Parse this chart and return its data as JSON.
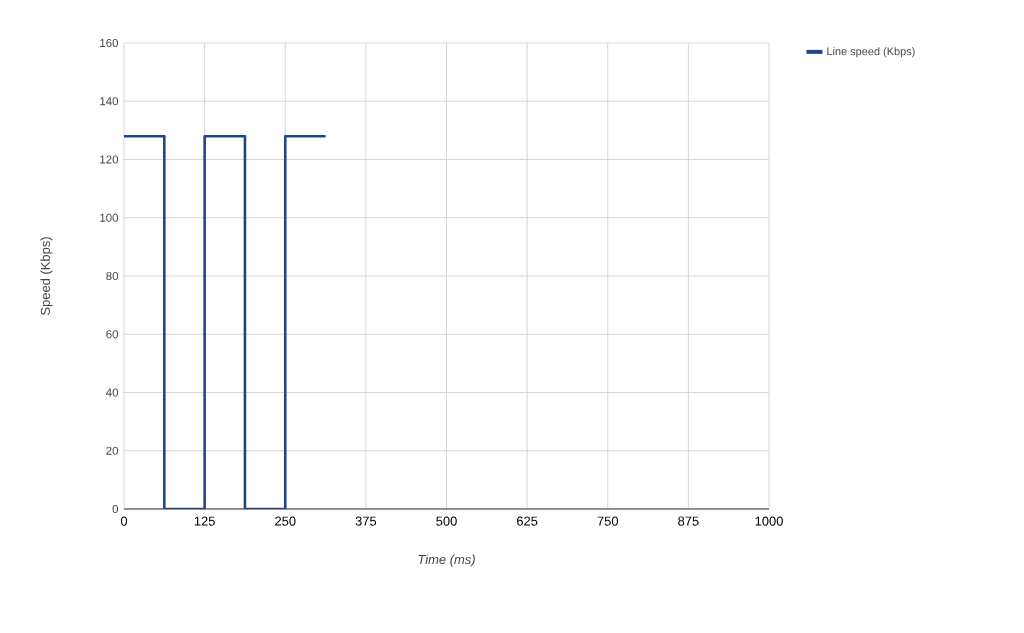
{
  "chart_data": {
    "type": "step",
    "xlabel": "Time (ms)",
    "ylabel": "Speed (Kbps)",
    "x": [
      0,
      62.5,
      125,
      187.5,
      250,
      312.5
    ],
    "series": [
      {
        "name": "Line speed (Kbps)",
        "color": "#1f4788",
        "values": [
          128,
          0,
          128,
          0,
          128,
          128
        ]
      }
    ],
    "xlim": [
      0,
      1000
    ],
    "ylim": [
      0,
      160
    ],
    "xticks": [
      0,
      125,
      250,
      375,
      500,
      625,
      750,
      875,
      1000
    ],
    "yticks": [
      0,
      20,
      40,
      60,
      80,
      100,
      120,
      140,
      160
    ],
    "grid": true,
    "legend": "top right",
    "line_style": "solid",
    "marker": "none"
  }
}
